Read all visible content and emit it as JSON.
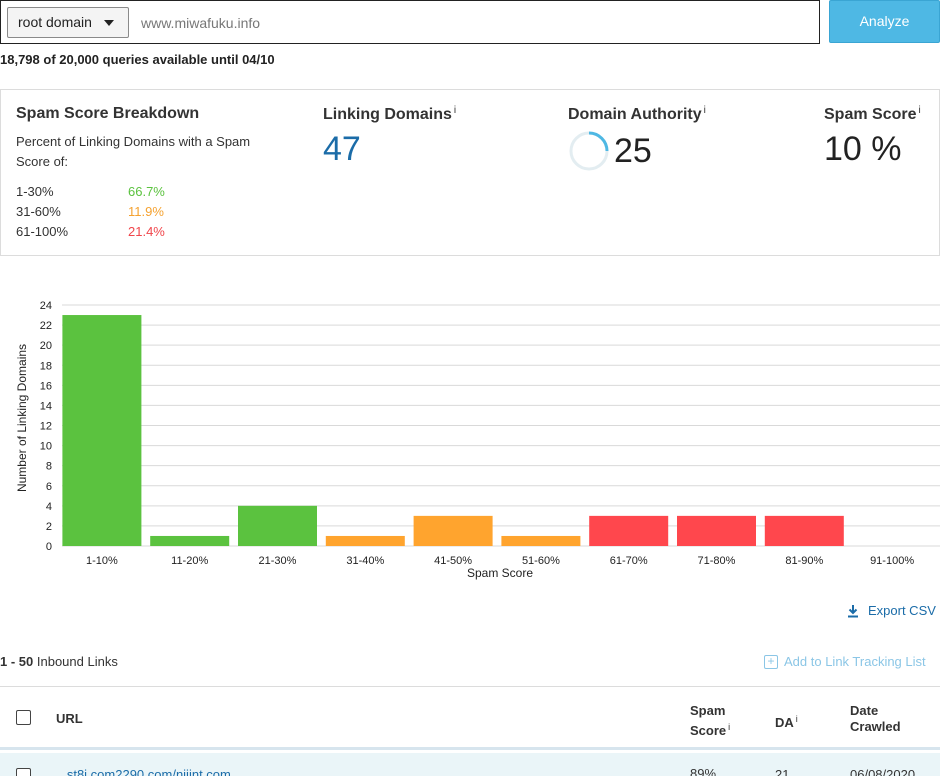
{
  "search": {
    "scope": "root domain",
    "domain": "www.miwafuku.info",
    "analyze_label": "Analyze"
  },
  "quota_text": "18,798 of 20,000 queries available until 04/10",
  "breakdown": {
    "title": "Spam Score Breakdown",
    "description": "Percent of Linking Domains with a Spam Score of:",
    "ranges": [
      {
        "label": "1-30%",
        "value": "66.7%",
        "color": "#5bc23f"
      },
      {
        "label": "31-60%",
        "value": "11.9%",
        "color": "#f5a230"
      },
      {
        "label": "61-100%",
        "value": "21.4%",
        "color": "#f0464b"
      }
    ]
  },
  "metrics": {
    "linking_domains": {
      "label": "Linking Domains",
      "info": "i",
      "value": "47"
    },
    "domain_authority": {
      "label": "Domain Authority",
      "info": "i",
      "value": "25",
      "fraction": 0.25
    },
    "spam_score": {
      "label": "Spam Score",
      "info": "i",
      "value": "10 %"
    }
  },
  "chart_data": {
    "type": "bar",
    "xlabel": "Spam Score",
    "ylabel": "Number of Linking Domains",
    "ylim": [
      0,
      24
    ],
    "yticks": [
      "0",
      "2",
      "4",
      "6",
      "8",
      "10",
      "12",
      "14",
      "16",
      "18",
      "20",
      "22",
      "24"
    ],
    "grid": true,
    "categories": [
      "1-10%",
      "11-20%",
      "21-30%",
      "31-40%",
      "41-50%",
      "51-60%",
      "61-70%",
      "71-80%",
      "81-90%",
      "91-100%"
    ],
    "values": [
      23,
      1,
      4,
      1,
      3,
      1,
      3,
      3,
      3,
      0
    ],
    "colors": [
      "#5bc23f",
      "#5bc23f",
      "#5bc23f",
      "#ffa42e",
      "#ffa42e",
      "#ffa42e",
      "#ff474d",
      "#ff474d",
      "#ff474d",
      "#ff474d"
    ]
  },
  "export_label": "Export CSV",
  "results": {
    "range": "1 - 50",
    "label": "Inbound Links",
    "add_tracking_label": "Add to Link Tracking List"
  },
  "table": {
    "headers": {
      "url": "URL",
      "spam_score_1": "Spam",
      "spam_score_2": "Score",
      "spam_info": "i",
      "da": "DA",
      "da_info": "i",
      "date_1": "Date",
      "date_2": "Crawled"
    },
    "rows": [
      {
        "url": "...st8i.com2290.com/njjjnt.com...",
        "spam": "89%",
        "da": "21",
        "date": "06/08/2020"
      }
    ]
  }
}
